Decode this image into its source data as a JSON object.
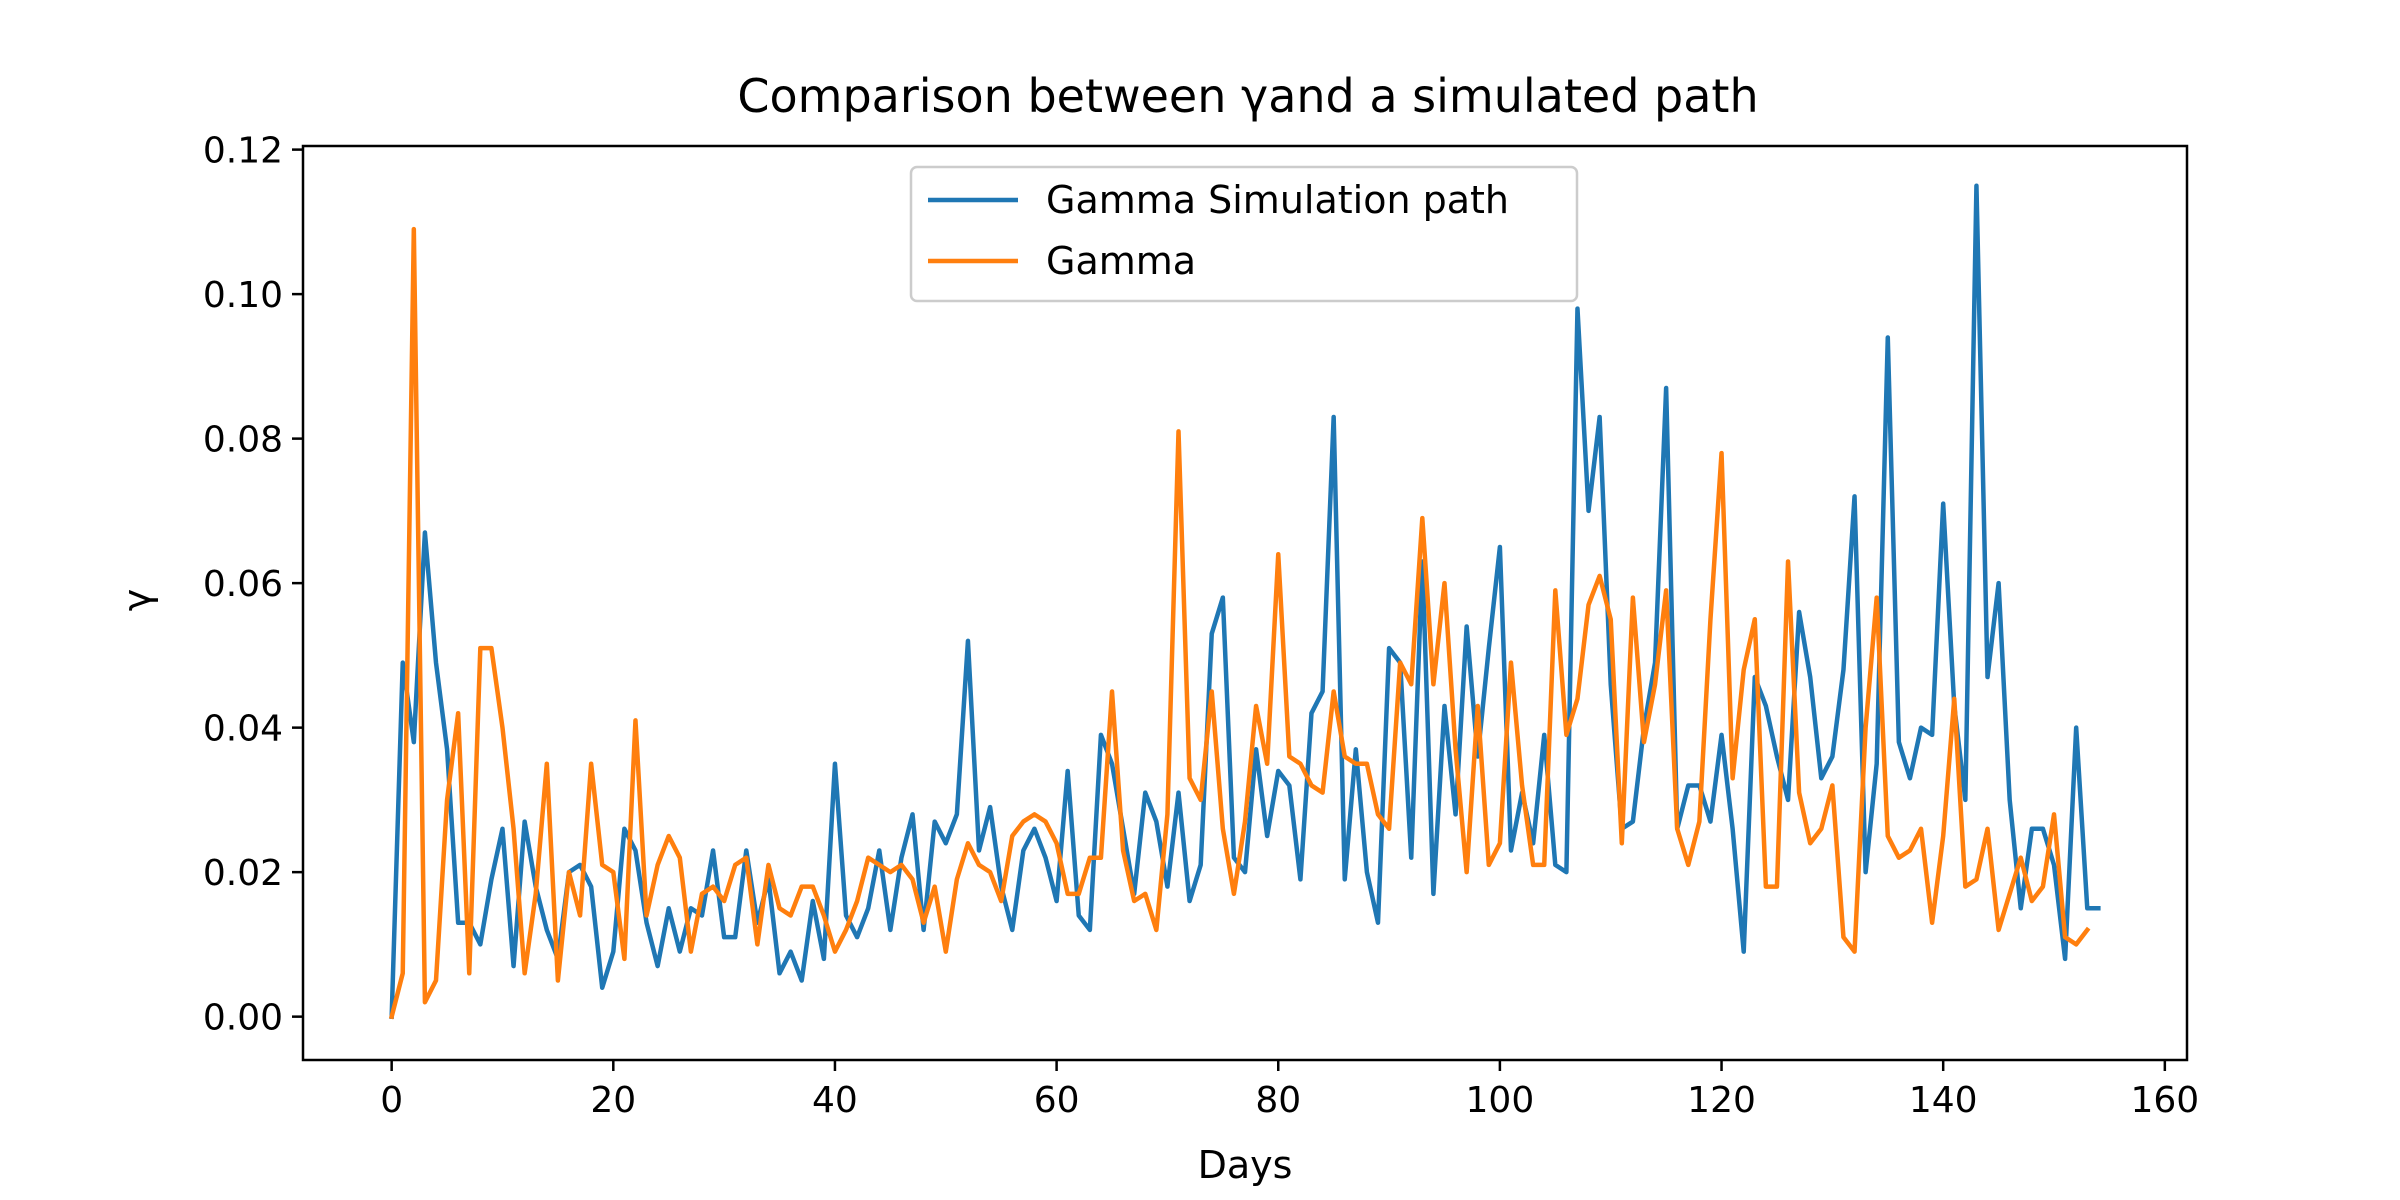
{
  "chart_data": {
    "type": "line",
    "title": "Comparison between γand a simulated path",
    "xlabel": "Days",
    "ylabel": "γ",
    "xlim": [
      -8,
      162
    ],
    "ylim": [
      -0.006,
      0.1205
    ],
    "xticks": [
      0,
      20,
      40,
      60,
      80,
      100,
      120,
      140,
      160
    ],
    "xtick_labels": [
      "0",
      "20",
      "40",
      "60",
      "80",
      "100",
      "120",
      "140",
      "160"
    ],
    "yticks": [
      0.0,
      0.02,
      0.04,
      0.06,
      0.08,
      0.1,
      0.12
    ],
    "ytick_labels": [
      "0.00",
      "0.02",
      "0.04",
      "0.06",
      "0.08",
      "0.10",
      "0.12"
    ],
    "grid": false,
    "legend_position": "top-center",
    "series": [
      {
        "name": "Gamma Simulation path",
        "color": "#1f77b4",
        "values": [
          0.0,
          0.049,
          0.038,
          0.067,
          0.049,
          0.037,
          0.013,
          0.013,
          0.01,
          0.019,
          0.026,
          0.007,
          0.027,
          0.018,
          0.012,
          0.008,
          0.02,
          0.021,
          0.018,
          0.004,
          0.009,
          0.026,
          0.023,
          0.013,
          0.007,
          0.015,
          0.009,
          0.015,
          0.014,
          0.023,
          0.011,
          0.011,
          0.023,
          0.013,
          0.019,
          0.006,
          0.009,
          0.005,
          0.016,
          0.008,
          0.035,
          0.014,
          0.011,
          0.015,
          0.023,
          0.012,
          0.022,
          0.028,
          0.012,
          0.027,
          0.024,
          0.028,
          0.052,
          0.023,
          0.029,
          0.018,
          0.012,
          0.023,
          0.026,
          0.022,
          0.016,
          0.034,
          0.014,
          0.012,
          0.039,
          0.035,
          0.026,
          0.017,
          0.031,
          0.027,
          0.018,
          0.031,
          0.016,
          0.021,
          0.053,
          0.058,
          0.022,
          0.02,
          0.037,
          0.025,
          0.034,
          0.032,
          0.019,
          0.042,
          0.045,
          0.083,
          0.019,
          0.037,
          0.02,
          0.013,
          0.051,
          0.049,
          0.022,
          0.063,
          0.017,
          0.043,
          0.028,
          0.054,
          0.036,
          0.051,
          0.065,
          0.023,
          0.031,
          0.024,
          0.039,
          0.021,
          0.02,
          0.098,
          0.07,
          0.083,
          0.046,
          0.026,
          0.027,
          0.04,
          0.049,
          0.087,
          0.026,
          0.032,
          0.032,
          0.027,
          0.039,
          0.026,
          0.009,
          0.047,
          0.043,
          0.036,
          0.03,
          0.056,
          0.047,
          0.033,
          0.036,
          0.048,
          0.072,
          0.02,
          0.035,
          0.094,
          0.038,
          0.033,
          0.04,
          0.039,
          0.071,
          0.043,
          0.03,
          0.115,
          0.047,
          0.06,
          0.03,
          0.015,
          0.026,
          0.026,
          0.021,
          0.008,
          0.04,
          0.015,
          0.015
        ]
      },
      {
        "name": "Gamma",
        "color": "#ff7f0e",
        "values": [
          0.0,
          0.006,
          0.109,
          0.002,
          0.005,
          0.03,
          0.042,
          0.006,
          0.051,
          0.051,
          0.04,
          0.026,
          0.006,
          0.017,
          0.035,
          0.005,
          0.02,
          0.014,
          0.035,
          0.021,
          0.02,
          0.008,
          0.041,
          0.014,
          0.021,
          0.025,
          0.022,
          0.009,
          0.017,
          0.018,
          0.016,
          0.021,
          0.022,
          0.01,
          0.021,
          0.015,
          0.014,
          0.018,
          0.018,
          0.014,
          0.009,
          0.012,
          0.016,
          0.022,
          0.021,
          0.02,
          0.021,
          0.019,
          0.013,
          0.018,
          0.009,
          0.019,
          0.024,
          0.021,
          0.02,
          0.016,
          0.025,
          0.027,
          0.028,
          0.027,
          0.024,
          0.017,
          0.017,
          0.022,
          0.022,
          0.045,
          0.023,
          0.016,
          0.017,
          0.012,
          0.028,
          0.081,
          0.033,
          0.03,
          0.045,
          0.026,
          0.017,
          0.027,
          0.043,
          0.035,
          0.064,
          0.036,
          0.035,
          0.032,
          0.031,
          0.045,
          0.036,
          0.035,
          0.035,
          0.028,
          0.026,
          0.049,
          0.046,
          0.069,
          0.046,
          0.06,
          0.037,
          0.02,
          0.043,
          0.021,
          0.024,
          0.049,
          0.032,
          0.021,
          0.021,
          0.059,
          0.039,
          0.044,
          0.057,
          0.061,
          0.055,
          0.024,
          0.058,
          0.038,
          0.046,
          0.059,
          0.026,
          0.021,
          0.027,
          0.055,
          0.078,
          0.033,
          0.048,
          0.055,
          0.018,
          0.018,
          0.063,
          0.031,
          0.024,
          0.026,
          0.032,
          0.011,
          0.009,
          0.04,
          0.058,
          0.025,
          0.022,
          0.023,
          0.026,
          0.013,
          0.025,
          0.044,
          0.018,
          0.019,
          0.026,
          0.012,
          0.017,
          0.022,
          0.016,
          0.018,
          0.028,
          0.011,
          0.01,
          0.012
        ]
      }
    ]
  }
}
